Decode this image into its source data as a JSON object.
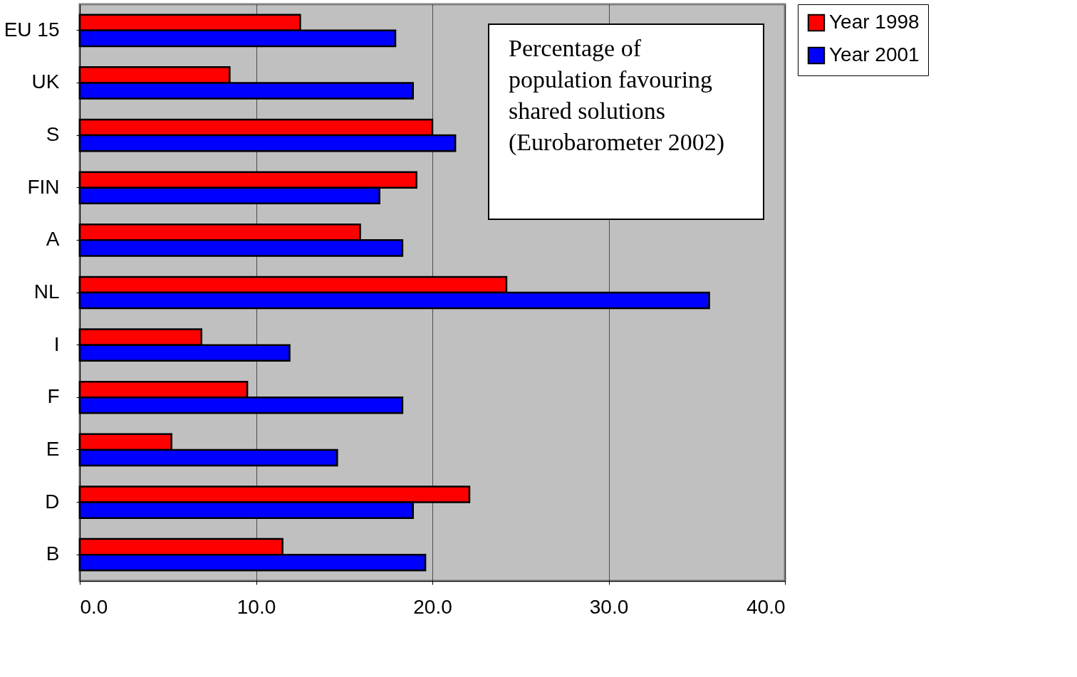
{
  "chart_data": {
    "type": "bar",
    "orientation": "horizontal",
    "categories": [
      "EU 15",
      "UK",
      "S",
      "FIN",
      "A",
      "NL",
      "I",
      "F",
      "E",
      "D",
      "B"
    ],
    "series": [
      {
        "name": "Year 1998",
        "color": "#ff0000",
        "values": [
          12.5,
          8.5,
          20.0,
          19.1,
          15.9,
          24.2,
          6.9,
          9.5,
          5.2,
          22.1,
          11.5
        ]
      },
      {
        "name": "Year 2001",
        "color": "#0000ff",
        "values": [
          17.9,
          18.9,
          21.3,
          17.0,
          18.3,
          35.7,
          11.9,
          18.3,
          14.6,
          18.9,
          19.6
        ]
      }
    ],
    "xlim": [
      0,
      40
    ],
    "xticks": [
      {
        "value": 0,
        "label": "0.0"
      },
      {
        "value": 10,
        "label": "10.0"
      },
      {
        "value": 20,
        "label": "20.0"
      },
      {
        "value": 30,
        "label": "30.0"
      },
      {
        "value": 40,
        "label": "40.0"
      }
    ],
    "grid": "x",
    "legend": "right",
    "annotations": [
      "Percentage of\npopulation favouring\nshared solutions\n(Eurobarometer 2002)"
    ]
  }
}
